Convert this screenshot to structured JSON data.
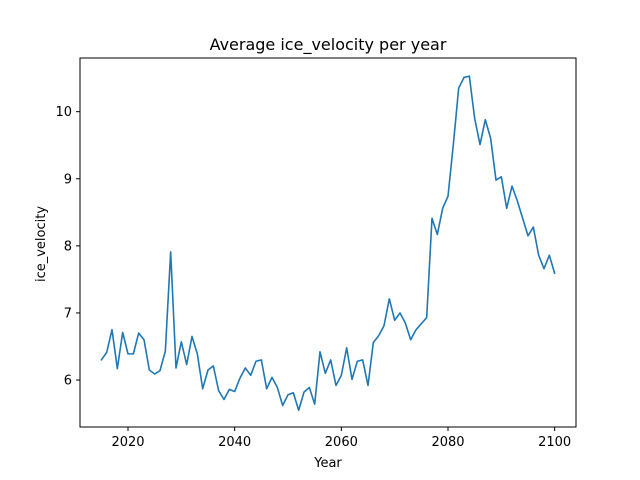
{
  "chart_data": {
    "type": "line",
    "title": "Average ice_velocity per year",
    "xlabel": "Year",
    "ylabel": "ice_velocity",
    "xlim": [
      2011,
      2104
    ],
    "ylim": [
      5.3,
      10.8
    ],
    "xticks": [
      2020,
      2040,
      2060,
      2080,
      2100
    ],
    "yticks": [
      6,
      7,
      8,
      9,
      10
    ],
    "grid": false,
    "color": "#1f77b4",
    "series": [
      {
        "x": [
          2015,
          2016,
          2017,
          2018,
          2019,
          2020,
          2021,
          2022,
          2023,
          2024,
          2025,
          2026,
          2027,
          2028,
          2029,
          2030,
          2031,
          2032,
          2033,
          2034,
          2035,
          2036,
          2037,
          2038,
          2039,
          2040,
          2041,
          2042,
          2043,
          2044,
          2045,
          2046,
          2047,
          2048,
          2049,
          2050,
          2051,
          2052,
          2053,
          2054,
          2055,
          2056,
          2057,
          2058,
          2059,
          2060,
          2061,
          2062,
          2063,
          2064,
          2065,
          2066,
          2067,
          2068,
          2069,
          2070,
          2071,
          2072,
          2073,
          2074,
          2075,
          2076,
          2077,
          2078,
          2079,
          2080,
          2081,
          2082,
          2083,
          2084,
          2085,
          2086,
          2087,
          2088,
          2089,
          2090,
          2091,
          2092,
          2093,
          2094,
          2095,
          2096,
          2097,
          2098,
          2099,
          2100
        ],
        "y": [
          6.3,
          6.41,
          6.75,
          6.17,
          6.71,
          6.39,
          6.39,
          6.7,
          6.6,
          6.15,
          6.09,
          6.14,
          6.43,
          7.91,
          6.18,
          6.57,
          6.23,
          6.65,
          6.39,
          5.87,
          6.15,
          6.21,
          5.84,
          5.71,
          5.86,
          5.83,
          6.03,
          6.18,
          6.07,
          6.28,
          6.3,
          5.87,
          6.04,
          5.89,
          5.62,
          5.78,
          5.81,
          5.55,
          5.82,
          5.89,
          5.64,
          6.42,
          6.1,
          6.3,
          5.92,
          6.07,
          6.48,
          6.01,
          6.28,
          6.3,
          5.92,
          6.56,
          6.66,
          6.81,
          7.21,
          6.89,
          7.0,
          6.85,
          6.6,
          6.75,
          6.84,
          6.93,
          8.41,
          8.17,
          8.56,
          8.74,
          9.51,
          10.35,
          10.51,
          10.53,
          9.9,
          9.51,
          9.88,
          9.6,
          8.98,
          9.03,
          8.56,
          8.89,
          8.67,
          8.41,
          8.15,
          8.28,
          7.86,
          7.66,
          7.86,
          7.59
        ]
      }
    ]
  }
}
